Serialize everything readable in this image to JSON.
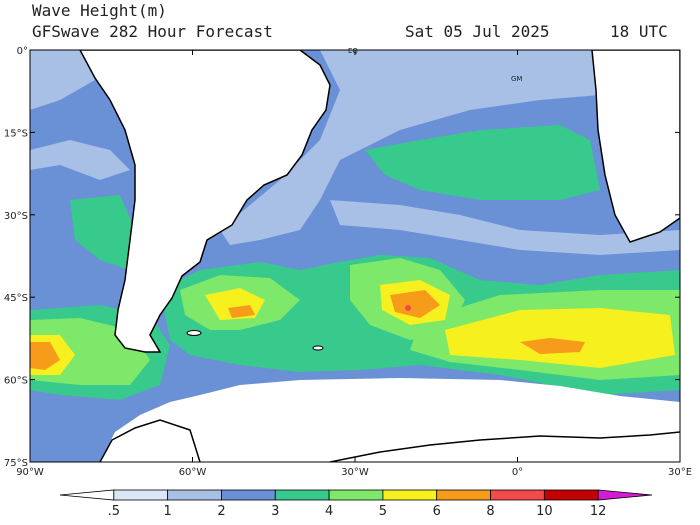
{
  "header": {
    "title": "Wave Height(m)",
    "subtitle": "GFSwave 282 Hour Forecast",
    "date": "Sat 05 Jul 2025",
    "time": "18 UTC"
  },
  "map": {
    "lat_labels": [
      "0°",
      "15°S",
      "30°S",
      "45°S",
      "60°S",
      "75°S"
    ],
    "lon_labels": [
      "90°W",
      "60°W",
      "30°W",
      "0°",
      "30°E"
    ],
    "place_labels": [
      "EQ",
      "GM"
    ]
  },
  "colorbar": {
    "labels": [
      ".5",
      "1",
      "2",
      "3",
      "4",
      "5",
      "6",
      "8",
      "10",
      "12"
    ],
    "colors": [
      "#ffffff",
      "#dbe7f6",
      "#a8bfe6",
      "#6a90d6",
      "#38c98c",
      "#7de86a",
      "#f6f01e",
      "#f79b1a",
      "#f24a4a",
      "#c40000",
      "#d41cd6"
    ]
  }
}
